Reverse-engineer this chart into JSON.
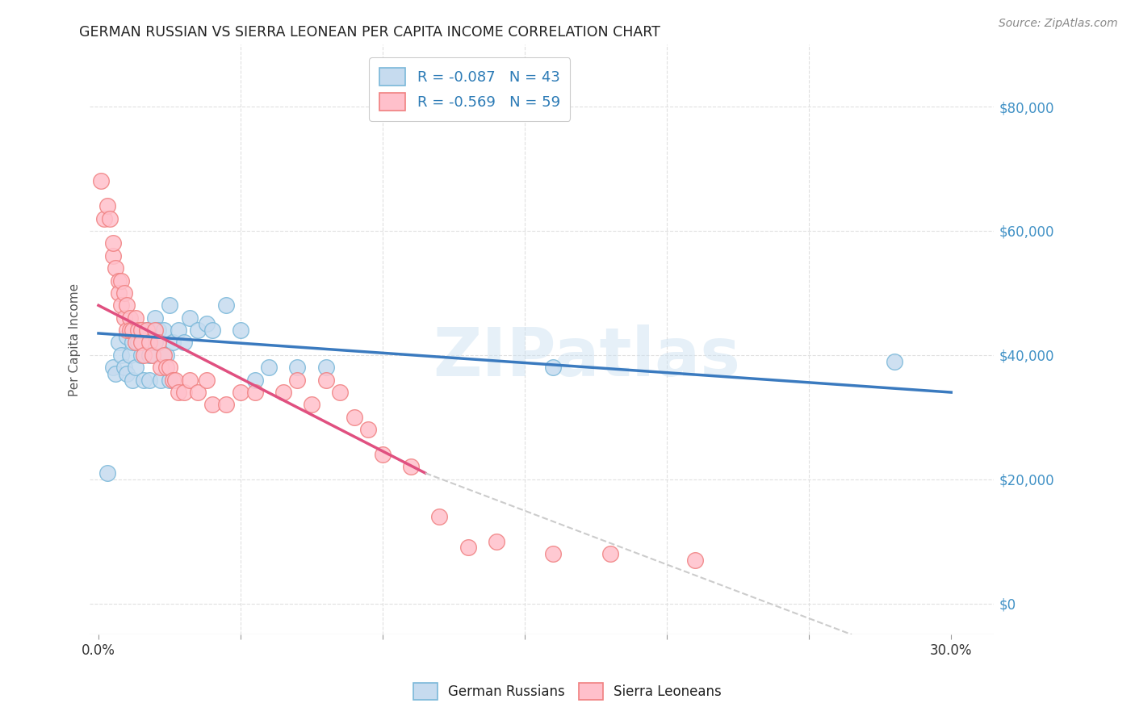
{
  "title": "GERMAN RUSSIAN VS SIERRA LEONEAN PER CAPITA INCOME CORRELATION CHART",
  "source": "Source: ZipAtlas.com",
  "ylabel": "Per Capita Income",
  "xlabel_ticks": [
    "0.0%",
    "30.0%"
  ],
  "xlabel_vals": [
    0.0,
    0.3
  ],
  "ylabel_vals": [
    0,
    20000,
    40000,
    60000,
    80000
  ],
  "xlim": [
    -0.003,
    0.315
  ],
  "ylim": [
    -5000,
    90000
  ],
  "watermark": "ZIPatlas",
  "legend_line1": "R = -0.087   N = 43",
  "legend_line2": "R = -0.569   N = 59",
  "legend_label1": "German Russians",
  "legend_label2": "Sierra Leoneans",
  "blue_color": "#7ab8d9",
  "blue_fill": "#c6dbef",
  "blue_edge": "#7ab8d9",
  "pink_color": "#f08080",
  "pink_fill": "#ffc0cb",
  "pink_edge": "#f08080",
  "trend_blue": "#3a7abf",
  "trend_pink": "#e05080",
  "trend_dashed": "#cccccc",
  "blue_scatter_x": [
    0.003,
    0.005,
    0.006,
    0.007,
    0.008,
    0.009,
    0.01,
    0.01,
    0.011,
    0.012,
    0.012,
    0.013,
    0.014,
    0.015,
    0.015,
    0.016,
    0.017,
    0.018,
    0.018,
    0.019,
    0.02,
    0.02,
    0.021,
    0.022,
    0.023,
    0.024,
    0.025,
    0.025,
    0.026,
    0.028,
    0.03,
    0.032,
    0.035,
    0.038,
    0.04,
    0.045,
    0.05,
    0.055,
    0.06,
    0.07,
    0.08,
    0.16,
    0.28
  ],
  "blue_scatter_y": [
    21000,
    38000,
    37000,
    42000,
    40000,
    38000,
    43000,
    37000,
    40000,
    36000,
    42000,
    38000,
    42000,
    44000,
    40000,
    36000,
    44000,
    40000,
    36000,
    44000,
    42000,
    46000,
    44000,
    36000,
    44000,
    40000,
    48000,
    36000,
    42000,
    44000,
    42000,
    46000,
    44000,
    45000,
    44000,
    48000,
    44000,
    36000,
    38000,
    38000,
    38000,
    38000,
    39000
  ],
  "pink_scatter_x": [
    0.001,
    0.002,
    0.003,
    0.004,
    0.005,
    0.005,
    0.006,
    0.007,
    0.007,
    0.008,
    0.008,
    0.009,
    0.009,
    0.01,
    0.01,
    0.011,
    0.011,
    0.012,
    0.013,
    0.013,
    0.014,
    0.015,
    0.015,
    0.016,
    0.017,
    0.018,
    0.019,
    0.02,
    0.021,
    0.022,
    0.023,
    0.024,
    0.025,
    0.026,
    0.027,
    0.028,
    0.03,
    0.032,
    0.035,
    0.038,
    0.04,
    0.045,
    0.05,
    0.055,
    0.065,
    0.07,
    0.075,
    0.08,
    0.085,
    0.09,
    0.095,
    0.1,
    0.11,
    0.12,
    0.13,
    0.14,
    0.16,
    0.18,
    0.21
  ],
  "pink_scatter_y": [
    68000,
    62000,
    64000,
    62000,
    56000,
    58000,
    54000,
    52000,
    50000,
    52000,
    48000,
    50000,
    46000,
    48000,
    44000,
    46000,
    44000,
    44000,
    42000,
    46000,
    44000,
    44000,
    42000,
    40000,
    44000,
    42000,
    40000,
    44000,
    42000,
    38000,
    40000,
    38000,
    38000,
    36000,
    36000,
    34000,
    34000,
    36000,
    34000,
    36000,
    32000,
    32000,
    34000,
    34000,
    34000,
    36000,
    32000,
    36000,
    34000,
    30000,
    28000,
    24000,
    22000,
    14000,
    9000,
    10000,
    8000,
    8000,
    7000
  ],
  "blue_trend_x": [
    0.0,
    0.3
  ],
  "blue_trend_y": [
    43500,
    34000
  ],
  "pink_trend_x": [
    0.0,
    0.115
  ],
  "pink_trend_y": [
    48000,
    21000
  ],
  "dashed_trend_x": [
    0.115,
    0.265
  ],
  "dashed_trend_y": [
    21000,
    -5000
  ],
  "grid_color": "#e0e0e0",
  "background_color": "#ffffff",
  "title_color": "#222222",
  "axis_label_color": "#555555",
  "tick_color_y": "#4292c6",
  "tick_color_x": "#333333",
  "source_color": "#888888",
  "legend_text_color": "#2c7bb6"
}
